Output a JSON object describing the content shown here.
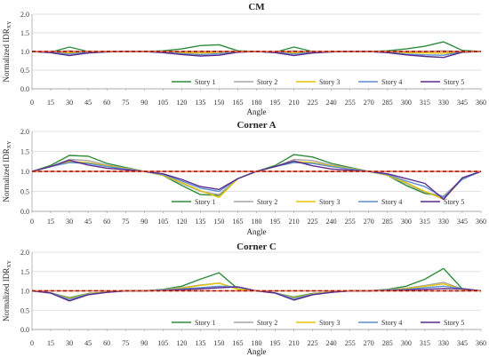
{
  "chart_data": [
    {
      "type": "line",
      "title": "CM",
      "xlabel": "Angle",
      "ylabel": "Normalized IDR",
      "ylabel_sub": "XY",
      "xlim": [
        0,
        360
      ],
      "ylim": [
        0,
        2.0
      ],
      "xticks": [
        0,
        15,
        30,
        45,
        60,
        75,
        90,
        105,
        120,
        135,
        150,
        165,
        180,
        195,
        210,
        225,
        240,
        255,
        270,
        285,
        300,
        315,
        330,
        345,
        360
      ],
      "yticks": [
        "0.0",
        "0.5",
        "1.0",
        "1.5",
        "2.0"
      ],
      "grid": true,
      "legend": "bottom-right",
      "reference": 1.0,
      "x": [
        0,
        15,
        30,
        45,
        60,
        75,
        90,
        105,
        120,
        135,
        150,
        165,
        180,
        195,
        210,
        225,
        240,
        255,
        270,
        285,
        300,
        315,
        330,
        345,
        360
      ],
      "series": [
        {
          "name": "Story 1",
          "color": "#2e8b3a",
          "values": [
            1.0,
            0.98,
            1.12,
            1.0,
            0.99,
            1.0,
            1.0,
            1.02,
            1.07,
            1.16,
            1.18,
            1.02,
            1.0,
            0.98,
            1.12,
            1.0,
            0.99,
            1.0,
            1.0,
            1.02,
            1.07,
            1.14,
            1.26,
            1.03,
            1.0
          ]
        },
        {
          "name": "Story 2",
          "color": "#a6a6a6",
          "values": [
            1.0,
            0.98,
            1.02,
            0.98,
            0.99,
            1.0,
            1.0,
            1.0,
            1.0,
            1.0,
            1.0,
            1.0,
            1.0,
            0.98,
            1.02,
            0.98,
            0.99,
            1.0,
            1.0,
            1.0,
            1.0,
            1.0,
            1.02,
            1.0,
            1.0
          ]
        },
        {
          "name": "Story 3",
          "color": "#e6c200",
          "values": [
            1.0,
            0.99,
            0.96,
            0.99,
            1.0,
            1.0,
            1.0,
            0.99,
            0.97,
            0.96,
            0.98,
            1.0,
            1.0,
            0.99,
            0.96,
            0.99,
            1.0,
            1.0,
            1.0,
            0.99,
            0.97,
            0.96,
            0.95,
            0.99,
            1.0
          ]
        },
        {
          "name": "Story 4",
          "color": "#5b8fd0",
          "values": [
            1.0,
            0.98,
            0.93,
            0.98,
            1.0,
            1.0,
            1.0,
            0.98,
            0.94,
            0.92,
            0.94,
            0.99,
            1.0,
            0.98,
            0.93,
            0.98,
            1.0,
            1.0,
            1.0,
            0.98,
            0.93,
            0.91,
            0.9,
            0.99,
            1.0
          ]
        },
        {
          "name": "Story 5",
          "color": "#5b2a8c",
          "values": [
            1.0,
            0.97,
            0.89,
            0.96,
            0.99,
            1.0,
            1.0,
            0.97,
            0.92,
            0.88,
            0.9,
            0.98,
            1.0,
            0.97,
            0.89,
            0.96,
            0.99,
            1.0,
            1.0,
            0.97,
            0.91,
            0.87,
            0.84,
            0.98,
            1.0
          ]
        }
      ]
    },
    {
      "type": "line",
      "title": "Corner A",
      "xlabel": "Angle",
      "ylabel": "Normalized IDR",
      "ylabel_sub": "XY",
      "xlim": [
        0,
        360
      ],
      "ylim": [
        0,
        2.0
      ],
      "xticks": [
        0,
        15,
        30,
        45,
        60,
        75,
        90,
        105,
        120,
        135,
        150,
        165,
        180,
        195,
        210,
        225,
        240,
        255,
        270,
        285,
        300,
        315,
        330,
        345,
        360
      ],
      "yticks": [
        "0.0",
        "0.5",
        "1.0",
        "1.5",
        "2.0"
      ],
      "grid": true,
      "legend": "bottom-right",
      "reference": 1.0,
      "x": [
        0,
        15,
        30,
        45,
        60,
        75,
        90,
        105,
        120,
        135,
        150,
        165,
        180,
        195,
        210,
        225,
        240,
        255,
        270,
        285,
        300,
        315,
        330,
        345,
        360
      ],
      "series": [
        {
          "name": "Story 1",
          "color": "#2e8b3a",
          "values": [
            1.0,
            1.15,
            1.4,
            1.38,
            1.2,
            1.1,
            1.0,
            0.9,
            0.65,
            0.42,
            0.4,
            0.82,
            1.0,
            1.15,
            1.42,
            1.36,
            1.2,
            1.1,
            1.0,
            0.9,
            0.65,
            0.45,
            0.38,
            0.82,
            1.0
          ]
        },
        {
          "name": "Story 2",
          "color": "#a6a6a6",
          "values": [
            1.0,
            1.12,
            1.3,
            1.27,
            1.16,
            1.08,
            1.0,
            0.9,
            0.7,
            0.5,
            0.42,
            0.82,
            1.0,
            1.12,
            1.3,
            1.27,
            1.16,
            1.08,
            1.0,
            0.9,
            0.7,
            0.48,
            0.38,
            0.82,
            1.0
          ]
        },
        {
          "name": "Story 3",
          "color": "#e6c200",
          "values": [
            1.0,
            1.12,
            1.25,
            1.22,
            1.14,
            1.07,
            1.0,
            0.9,
            0.72,
            0.52,
            0.35,
            0.82,
            1.0,
            1.12,
            1.25,
            1.22,
            1.14,
            1.07,
            1.0,
            0.9,
            0.72,
            0.5,
            0.3,
            0.82,
            1.0
          ]
        },
        {
          "name": "Story 4",
          "color": "#5b8fd0",
          "values": [
            1.0,
            1.12,
            1.22,
            1.2,
            1.12,
            1.06,
            1.0,
            0.92,
            0.76,
            0.58,
            0.5,
            0.82,
            1.0,
            1.12,
            1.22,
            1.2,
            1.12,
            1.06,
            1.0,
            0.92,
            0.76,
            0.62,
            0.35,
            0.8,
            1.0
          ]
        },
        {
          "name": "Story 5",
          "color": "#5b2a8c",
          "values": [
            1.0,
            1.12,
            1.28,
            1.16,
            1.08,
            1.04,
            1.0,
            0.94,
            0.8,
            0.62,
            0.55,
            0.82,
            1.0,
            1.12,
            1.26,
            1.14,
            1.06,
            1.03,
            1.0,
            0.94,
            0.82,
            0.7,
            0.3,
            0.84,
            1.0
          ]
        }
      ]
    },
    {
      "type": "line",
      "title": "Corner C",
      "xlabel": "Angle",
      "ylabel": "Normalized IDR",
      "ylabel_sub": "XY",
      "xlim": [
        0,
        360
      ],
      "ylim": [
        0,
        2.0
      ],
      "xticks": [
        0,
        15,
        30,
        45,
        60,
        75,
        90,
        105,
        120,
        135,
        150,
        165,
        180,
        195,
        210,
        225,
        240,
        255,
        270,
        285,
        300,
        315,
        330,
        345,
        360
      ],
      "yticks": [
        "0.0",
        "0.5",
        "1.0",
        "1.5",
        "2.0"
      ],
      "grid": true,
      "legend": "bottom-right",
      "reference": 1.0,
      "x": [
        0,
        15,
        30,
        45,
        60,
        75,
        90,
        105,
        120,
        135,
        150,
        165,
        180,
        195,
        210,
        225,
        240,
        255,
        270,
        285,
        300,
        315,
        330,
        345,
        360
      ],
      "series": [
        {
          "name": "Story 1",
          "color": "#2e8b3a",
          "values": [
            1.0,
            0.95,
            0.82,
            0.93,
            0.97,
            1.0,
            1.0,
            1.04,
            1.12,
            1.3,
            1.47,
            1.05,
            1.0,
            0.95,
            0.84,
            0.93,
            0.97,
            1.0,
            1.0,
            1.04,
            1.12,
            1.3,
            1.58,
            1.05,
            1.0
          ]
        },
        {
          "name": "Story 2",
          "color": "#a6a6a6",
          "values": [
            1.0,
            0.95,
            0.8,
            0.92,
            0.97,
            1.0,
            1.0,
            1.03,
            1.08,
            1.15,
            1.2,
            1.05,
            1.0,
            0.95,
            0.82,
            0.92,
            0.97,
            1.0,
            1.0,
            1.03,
            1.07,
            1.14,
            1.22,
            1.05,
            1.0
          ]
        },
        {
          "name": "Story 3",
          "color": "#e6c200",
          "values": [
            1.0,
            0.95,
            0.8,
            0.92,
            0.97,
            1.0,
            1.0,
            1.02,
            1.07,
            1.14,
            1.2,
            1.04,
            1.0,
            0.95,
            0.82,
            0.92,
            0.97,
            1.0,
            1.0,
            1.02,
            1.06,
            1.12,
            1.18,
            1.04,
            1.0
          ]
        },
        {
          "name": "Story 4",
          "color": "#5b8fd0",
          "values": [
            1.0,
            0.95,
            0.78,
            0.91,
            0.96,
            1.0,
            1.0,
            1.02,
            1.05,
            1.08,
            1.12,
            1.1,
            1.0,
            0.95,
            0.8,
            0.91,
            0.96,
            1.0,
            1.0,
            1.02,
            1.04,
            1.08,
            1.12,
            1.06,
            1.0
          ]
        },
        {
          "name": "Story 5",
          "color": "#5b2a8c",
          "values": [
            1.0,
            0.94,
            0.74,
            0.9,
            0.96,
            1.0,
            1.0,
            1.01,
            1.03,
            1.05,
            1.08,
            1.1,
            1.0,
            0.94,
            0.76,
            0.9,
            0.96,
            1.0,
            1.0,
            1.01,
            1.02,
            1.04,
            1.06,
            1.05,
            1.0
          ]
        }
      ]
    }
  ]
}
